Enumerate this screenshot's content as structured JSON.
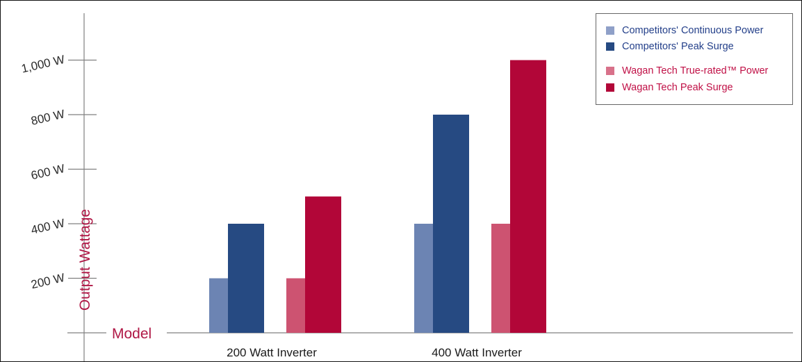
{
  "chart_data": {
    "type": "bar",
    "ylabel": "Output Wattage",
    "xlabel": "Model",
    "categories": [
      "200 Watt Inverter",
      "400 Watt Inverter"
    ],
    "y_ticks": [
      {
        "value": 200,
        "label": "200 W"
      },
      {
        "value": 400,
        "label": "400 W"
      },
      {
        "value": 600,
        "label": "600 W"
      },
      {
        "value": 800,
        "label": "800 W"
      },
      {
        "value": 1000,
        "label": "1,000 W"
      }
    ],
    "ylim": [
      0,
      1200
    ],
    "grid": false,
    "legend_position": "top-right",
    "series": [
      {
        "name": "Competitors' Continuous Power",
        "color": "#6c84b3",
        "values": [
          200,
          400
        ]
      },
      {
        "name": "Competitors' Peak Surge",
        "color": "#264a82",
        "values": [
          400,
          800
        ]
      },
      {
        "name": "Wagan Tech True-rated™ Power",
        "color": "#cd5371",
        "values": [
          200,
          400
        ]
      },
      {
        "name": "Wagan Tech Peak Surge",
        "color": "#b20638",
        "values": [
          500,
          1000
        ]
      }
    ],
    "colors": {
      "axis": "#808080",
      "label_red": "#b01846",
      "legend_blue": "#24408a",
      "legend_red": "#c01046"
    }
  }
}
